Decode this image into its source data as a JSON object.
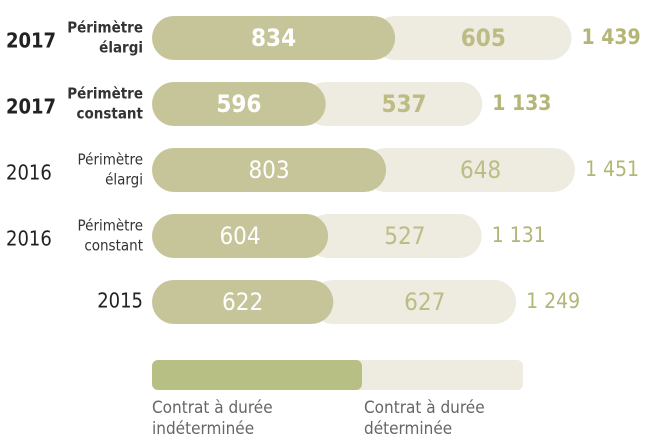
{
  "chart_data": {
    "type": "stacked-bar",
    "categories": [
      "2017",
      "2017",
      "2016",
      "2016",
      "2015"
    ],
    "scopes": [
      [
        "Périmètre",
        "élargi"
      ],
      [
        "Périmètre",
        "constant"
      ],
      [
        "Périmètre",
        "élargi"
      ],
      [
        "Périmètre",
        "constant"
      ],
      null
    ],
    "bold": [
      true,
      true,
      false,
      false,
      false
    ],
    "series": [
      {
        "name": "Contrat à durée indéterminée",
        "color": "#c6c59a",
        "values": [
          834,
          596,
          803,
          604,
          622
        ]
      },
      {
        "name": "Contrat à durée déterminée",
        "color": "#eeebe0",
        "values": [
          605,
          537,
          648,
          527,
          627
        ]
      }
    ],
    "totals": [
      1439,
      1133,
      1451,
      1131,
      1249
    ],
    "total_labels": [
      "1 439",
      "1 133",
      "1 451",
      "1 131",
      "1 249"
    ]
  }
}
